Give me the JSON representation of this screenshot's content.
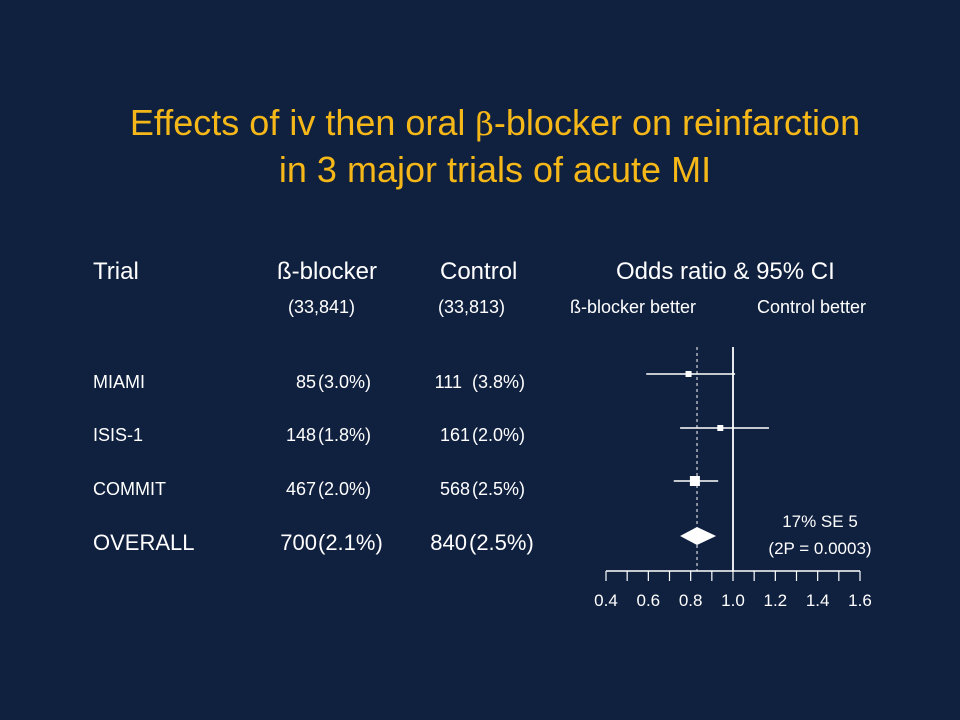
{
  "title": {
    "line1_prefix": "Effects of iv then oral ",
    "beta": "β",
    "line1_suffix": "-blocker on reinfarction",
    "line2": "in 3 major trials of acute MI"
  },
  "headers": {
    "trial": "Trial",
    "blocker": "ß-blocker",
    "control": "Control",
    "odds": "Odds ratio & 95% CI",
    "blocker_n": "(33,841)",
    "control_n": "(33,813)",
    "blocker_better": "ß-blocker better",
    "control_better": "Control better"
  },
  "rows": [
    {
      "name": "MIAMI",
      "b_count": "85",
      "b_pct": "(3.0%)",
      "c_count": "111",
      "c_pct": "(3.8%)"
    },
    {
      "name": "ISIS-1",
      "b_count": "148",
      "b_pct": "(1.8%)",
      "c_count": "161",
      "c_pct": "(2.0%)"
    },
    {
      "name": "COMMIT",
      "b_count": "467",
      "b_pct": "(2.0%)",
      "c_count": "568",
      "c_pct": "(2.5%)"
    },
    {
      "name": "OVERALL",
      "b_count": "700",
      "b_pct": "(2.1%)",
      "c_count": "840",
      "c_pct": "(2.5%)"
    }
  ],
  "stats": {
    "line1": "17% SE 5",
    "line2": "(2P = 0.0003)"
  },
  "colors": {
    "background": "#10203f",
    "title": "#f5b818",
    "text": "#ffffff"
  },
  "chart_data": {
    "type": "forest",
    "x_range": [
      0.4,
      1.6
    ],
    "ticks": [
      "0.4",
      "0.6",
      "0.8",
      "1.0",
      "1.2",
      "1.4",
      "1.6"
    ],
    "reference_line": 1.0,
    "overall_dashed_line": 0.83,
    "studies": [
      {
        "name": "MIAMI",
        "or": 0.79,
        "lo": 0.59,
        "hi": 1.01
      },
      {
        "name": "ISIS-1",
        "or": 0.94,
        "lo": 0.75,
        "hi": 1.17
      },
      {
        "name": "COMMIT",
        "or": 0.82,
        "lo": 0.72,
        "hi": 0.93
      }
    ],
    "overall": {
      "or": 0.83,
      "lo": 0.75,
      "hi": 0.92
    }
  }
}
